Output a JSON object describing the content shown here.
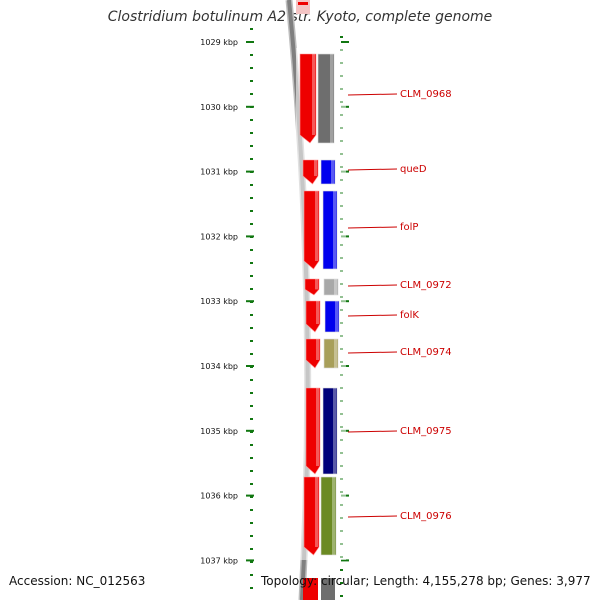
{
  "title": "Clostridium botulinum A2 str. Kyoto, complete genome",
  "accession": "Accession: NC_012563",
  "topology": "Topology: circular; Length: 4,155,278 bp; Genes: 3,977",
  "ticks": [
    {
      "label": "1029 kbp"
    },
    {
      "label": "1030 kbp"
    },
    {
      "label": "1031 kbp"
    },
    {
      "label": "1032 kbp"
    },
    {
      "label": "1033 kbp"
    },
    {
      "label": "1034 kbp"
    },
    {
      "label": "1035 kbp"
    },
    {
      "label": "1036 kbp"
    },
    {
      "label": "1037 kbp"
    }
  ],
  "genes": [
    {
      "label": "CLM_0968",
      "color": "#6e6e6e"
    },
    {
      "label": "queD",
      "color": "#0000ee"
    },
    {
      "label": "folP",
      "color": "#0000ee"
    },
    {
      "label": "CLM_0972",
      "color": "#a8a8a8"
    },
    {
      "label": "folK",
      "color": "#0000ee"
    },
    {
      "label": "CLM_0974",
      "color": "#a89f5a"
    },
    {
      "label": "CLM_0975",
      "color": "#00007a"
    },
    {
      "label": "CLM_0976",
      "color": "#6b8a23"
    }
  ],
  "colors": {
    "strand": "#ee0000",
    "tick": "#117711",
    "backbone": "#808080",
    "label": "#cc0000"
  }
}
